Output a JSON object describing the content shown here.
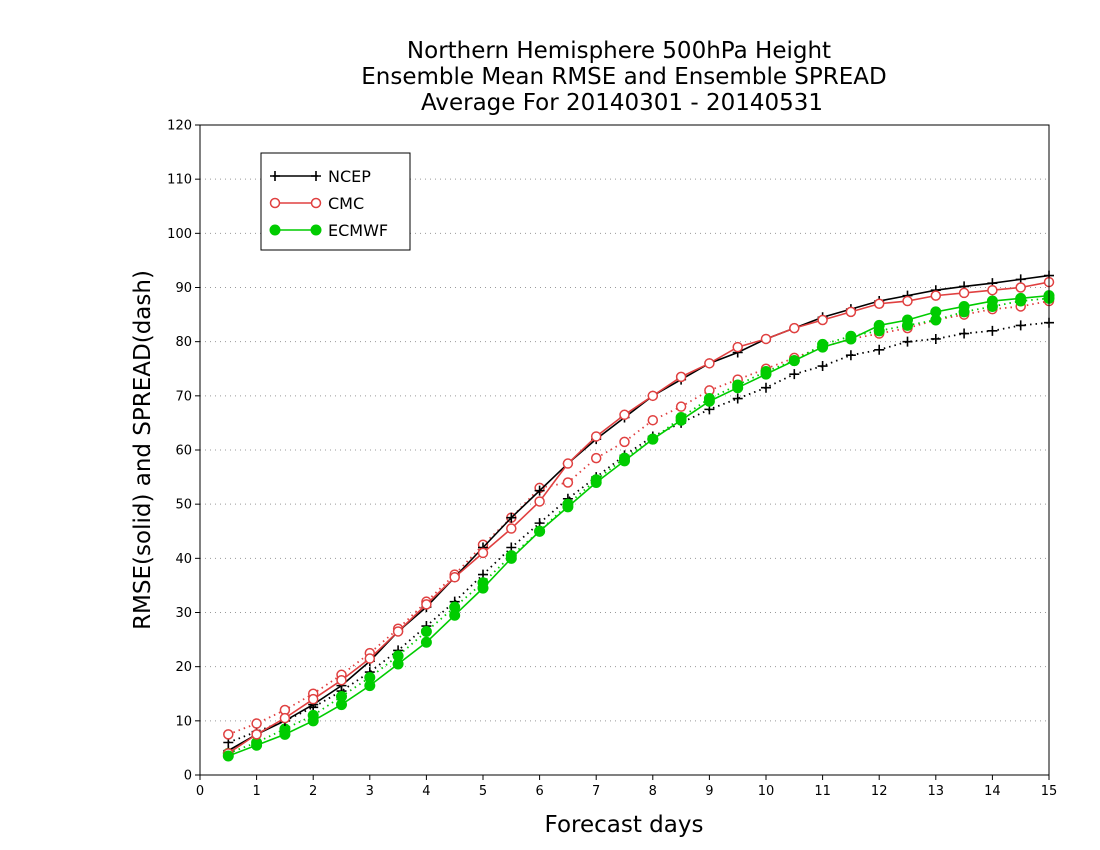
{
  "chart_data": {
    "type": "line",
    "title": [
      "Northern Hemisphere 500hPa Height",
      "Ensemble Mean RMSE and Ensemble SPREAD",
      "Average For 20140301 - 20140531"
    ],
    "xlabel": "Forecast days",
    "ylabel": "RMSE(solid) and SPREAD(dash)",
    "xlim": [
      0,
      15
    ],
    "ylim": [
      0,
      120
    ],
    "xticks": [
      "0",
      "1",
      "2",
      "3",
      "4",
      "5",
      "6",
      "7",
      "8",
      "9",
      "10",
      "11",
      "12",
      "13",
      "14",
      "15"
    ],
    "yticks": [
      "0",
      "10",
      "20",
      "30",
      "40",
      "50",
      "60",
      "70",
      "80",
      "90",
      "100",
      "110",
      "120"
    ],
    "grid": "dotted horizontal",
    "legend_position": "top-left",
    "x": [
      0.5,
      1,
      1.5,
      2,
      2.5,
      3,
      3.5,
      4,
      4.5,
      5,
      5.5,
      6,
      6.5,
      7,
      7.5,
      8,
      8.5,
      9,
      9.5,
      10,
      10.5,
      11,
      11.5,
      12,
      12.5,
      13,
      13.5,
      14,
      14.5,
      15
    ],
    "series": [
      {
        "name": "NCEP",
        "kind": "rmse",
        "color": "#000000",
        "marker": "plus",
        "values": [
          4.5,
          7.5,
          10,
          13,
          16.5,
          21,
          26.5,
          31,
          36.5,
          42,
          47.5,
          52.5,
          57.5,
          62,
          66,
          70,
          73,
          76,
          78,
          80.5,
          82.5,
          84.5,
          86,
          87.5,
          88.5,
          89.5,
          90.2,
          90.8,
          91.5,
          92.2
        ]
      },
      {
        "name": "NCEP",
        "kind": "spread",
        "color": "#000000",
        "marker": "plus",
        "values": [
          6,
          8,
          10,
          12.5,
          15.5,
          19,
          23,
          27.5,
          32,
          37,
          42,
          46.5,
          51,
          55,
          59,
          62.5,
          65,
          67.5,
          69.5,
          71.5,
          74,
          75.5,
          77.5,
          78.5,
          80,
          80.5,
          81.5,
          82,
          83,
          83.5
        ]
      },
      {
        "name": "CMC",
        "kind": "rmse",
        "color": "#e04040",
        "marker": "circle",
        "values": [
          4,
          7.5,
          10.5,
          14,
          17.5,
          21.5,
          26.5,
          31.5,
          36.5,
          41,
          45.5,
          50.5,
          57.5,
          62.5,
          66.5,
          70,
          73.5,
          76,
          79,
          80.5,
          82.5,
          84,
          85.5,
          87,
          87.5,
          88.5,
          89,
          89.5,
          90,
          91
        ]
      },
      {
        "name": "CMC",
        "kind": "spread",
        "color": "#e04040",
        "marker": "circle",
        "values": [
          7.5,
          9.5,
          12,
          15,
          18.5,
          22.5,
          27,
          32,
          37,
          42.5,
          47.5,
          53,
          54,
          58.5,
          61.5,
          65.5,
          68,
          71,
          73,
          75,
          77,
          79,
          80.5,
          81.5,
          82.5,
          84,
          85,
          86,
          86.5,
          87.5
        ]
      },
      {
        "name": "ECMWF",
        "kind": "rmse",
        "color": "#00cc00",
        "marker": "dot",
        "values": [
          3.5,
          5.5,
          7.5,
          10,
          13,
          16.5,
          20.5,
          24.5,
          29.5,
          34.5,
          40,
          45,
          49.5,
          54,
          58,
          62,
          65.5,
          69,
          71.5,
          74,
          76.5,
          79,
          80.5,
          83,
          84,
          85.5,
          86.5,
          87.5,
          88,
          88.5
        ]
      },
      {
        "name": "ECMWF",
        "kind": "spread",
        "color": "#00cc00",
        "marker": "dot",
        "values": [
          4,
          6,
          8.5,
          11,
          14.5,
          18,
          22,
          26.5,
          31,
          35.5,
          40.5,
          45,
          50,
          54.5,
          58.5,
          62,
          66,
          69.5,
          72,
          74.5,
          76.5,
          79.5,
          81,
          82,
          83,
          84,
          85.5,
          86.5,
          87.5,
          88
        ]
      }
    ],
    "legend": [
      "NCEP",
      "CMC",
      "ECMWF"
    ]
  }
}
